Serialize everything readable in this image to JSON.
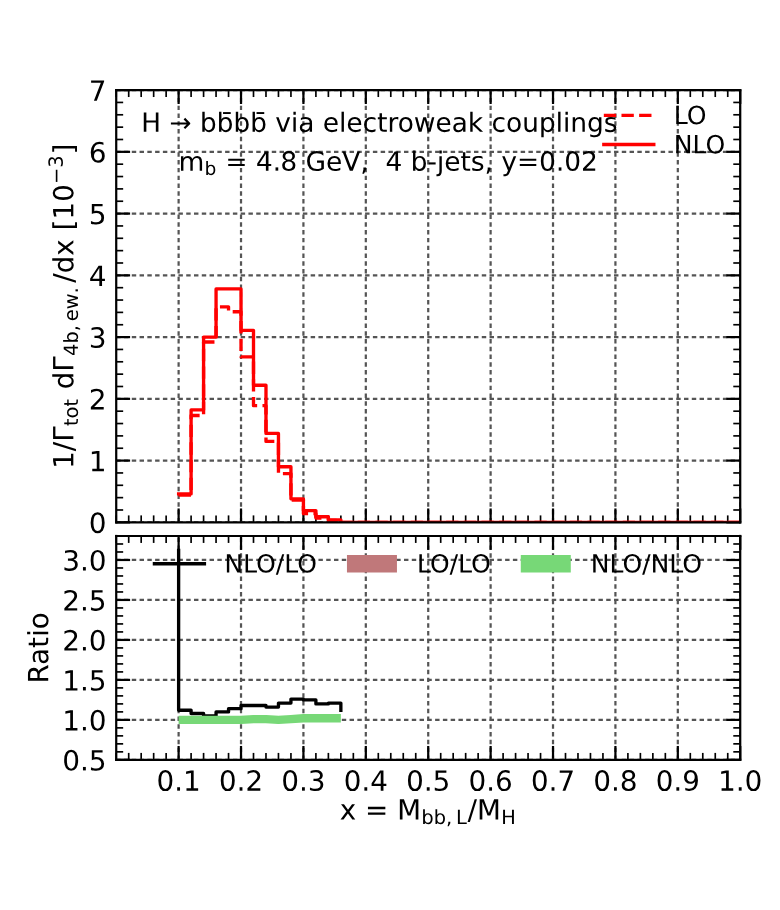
{
  "chart_data": [
    {
      "type": "step",
      "ylabel": "1/Γ$_{tot}$ dΓ$_{4b,ew.}$/dx [10$^{−3}$]",
      "annotations": [
        "H → bb̄bb̄ via electroweak couplings",
        "m$_{b}$ = 4.8 GeV,  4 b-jets, y=0.02"
      ],
      "x": [
        0.1,
        0.12,
        0.14,
        0.16,
        0.18,
        0.2,
        0.22,
        0.24,
        0.26,
        0.28,
        0.3,
        0.32,
        0.34,
        0.36,
        1.0
      ],
      "series": [
        {
          "name": "LO",
          "color": "#ff0000",
          "line_style": "dashed",
          "values": [
            0.44,
            1.73,
            2.92,
            3.49,
            3.41,
            2.68,
            1.89,
            1.31,
            0.79,
            0.36,
            0.14,
            0.07,
            0.03,
            0,
            0
          ]
        },
        {
          "name": "NLO",
          "color": "#ff0000",
          "line_style": "solid",
          "values": [
            0.46,
            1.82,
            3.0,
            3.78,
            3.78,
            3.11,
            2.22,
            1.44,
            0.9,
            0.38,
            0.19,
            0.09,
            0.04,
            0,
            0
          ]
        }
      ],
      "xlim": [
        0,
        1.0
      ],
      "ylim": [
        0,
        7
      ],
      "yticks": [
        0,
        1,
        2,
        3,
        4,
        5,
        6,
        7
      ],
      "xticks": [
        0.1,
        0.2,
        0.3,
        0.4,
        0.5,
        0.6,
        0.7,
        0.8,
        0.9,
        1.0
      ],
      "tick_labels": "y",
      "grid": true,
      "legend": "top right"
    },
    {
      "type": "step",
      "xlabel": "x = M$_{bb,L}$/M$_{H}$",
      "ylabel": "Ratio",
      "series": [
        {
          "name": "NLO/LO",
          "color": "#000000",
          "x": [
            0.1,
            0.1,
            0.12,
            0.14,
            0.16,
            0.18,
            0.2,
            0.22,
            0.24,
            0.26,
            0.28,
            0.3,
            0.32,
            0.34,
            0.36
          ],
          "values": [
            3.12,
            1.12,
            1.08,
            1.05,
            1.1,
            1.14,
            1.18,
            1.18,
            1.16,
            1.21,
            1.26,
            1.25,
            1.2,
            1.21,
            1.12
          ]
        },
        {
          "name": "LO/LO",
          "type": "area",
          "color": "#c0787a"
        },
        {
          "name": "NLO/NLO",
          "type": "line",
          "color": "#77d877",
          "x": [
            0.1,
            0.12,
            0.14,
            0.16,
            0.18,
            0.2,
            0.22,
            0.24,
            0.26,
            0.28,
            0.3,
            0.32,
            0.34,
            0.36
          ],
          "values": [
            1.0,
            1.0,
            1.0,
            1.0,
            1.0,
            1.0,
            1.01,
            1.01,
            1.0,
            1.01,
            1.02,
            1.02,
            1.02,
            1.02
          ]
        }
      ],
      "xlim": [
        0,
        1.0
      ],
      "ylim": [
        0.5,
        3.3
      ],
      "yticks": [
        {
          "value": 0.5,
          "label": "0.5"
        },
        {
          "value": 1.0,
          "label": "1.0"
        },
        {
          "value": 1.5,
          "label": "1.5"
        },
        {
          "value": 2.0,
          "label": "2.0"
        },
        {
          "value": 2.5,
          "label": "2.5"
        },
        {
          "value": 3.0,
          "label": "3.0"
        }
      ],
      "xticks": [
        0.1,
        0.2,
        0.3,
        0.4,
        0.5,
        0.6,
        0.7,
        0.8,
        0.9,
        {
          "value": 1.0,
          "label": "1.0"
        }
      ],
      "grid": true,
      "legend": "top"
    }
  ]
}
